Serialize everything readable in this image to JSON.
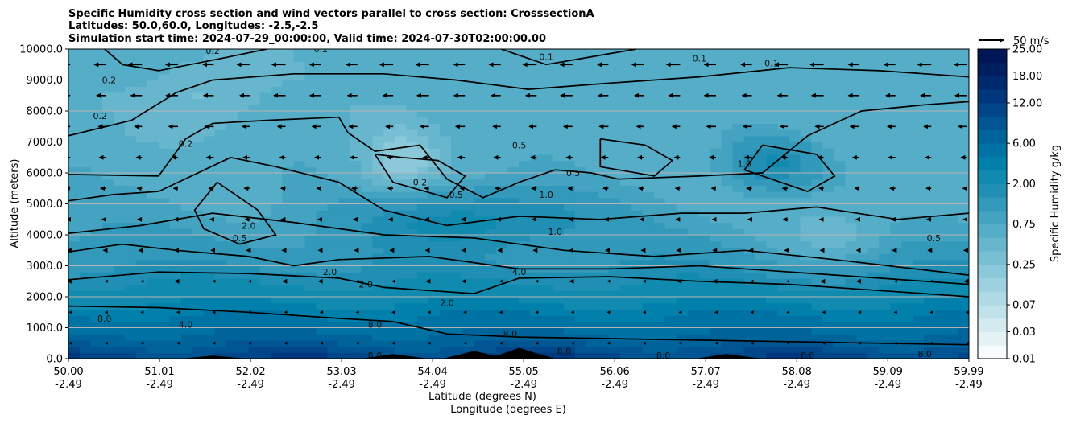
{
  "chart_data": {
    "type": "heatmap",
    "title": [
      "Specific Humidity cross section and wind vectors parallel to cross section: CrosssectionA",
      "Latitudes: 50.0,60.0, Longitudes: -2.5,-2.5",
      "Simulation start time: 2024-07-29_00:00:00, Valid time: 2024-07-30T02:00:00.00"
    ],
    "xlabel": [
      "Latitude (degrees N)",
      "Longitude (degrees E)"
    ],
    "ylabel": "Altitude (meters)",
    "xlim": [
      50.0,
      59.99
    ],
    "ylim": [
      0,
      10000
    ],
    "x_ticks": [
      {
        "lat": "50.00",
        "lon": "-2.49",
        "v": 50.0
      },
      {
        "lat": "51.01",
        "lon": "-2.49",
        "v": 51.01
      },
      {
        "lat": "52.02",
        "lon": "-2.49",
        "v": 52.02
      },
      {
        "lat": "53.03",
        "lon": "-2.49",
        "v": 53.03
      },
      {
        "lat": "54.04",
        "lon": "-2.49",
        "v": 54.04
      },
      {
        "lat": "55.05",
        "lon": "-2.49",
        "v": 55.05
      },
      {
        "lat": "56.06",
        "lon": "-2.49",
        "v": 56.06
      },
      {
        "lat": "57.07",
        "lon": "-2.49",
        "v": 57.07
      },
      {
        "lat": "58.08",
        "lon": "-2.49",
        "v": 58.08
      },
      {
        "lat": "59.09",
        "lon": "-2.49",
        "v": 59.09
      },
      {
        "lat": "59.99",
        "lon": "-2.49",
        "v": 59.99
      }
    ],
    "y_ticks": [
      {
        "label": "0.0",
        "v": 0
      },
      {
        "label": "1000.0",
        "v": 1000
      },
      {
        "label": "2000.0",
        "v": 2000
      },
      {
        "label": "3000.0",
        "v": 3000
      },
      {
        "label": "4000.0",
        "v": 4000
      },
      {
        "label": "5000.0",
        "v": 5000
      },
      {
        "label": "6000.0",
        "v": 6000
      },
      {
        "label": "7000.0",
        "v": 7000
      },
      {
        "label": "8000.0",
        "v": 8000
      },
      {
        "label": "9000.0",
        "v": 9000
      },
      {
        "label": "10000.0",
        "v": 10000
      }
    ],
    "grid": "horizontal",
    "colorbar": {
      "label": "Specific Humidity g/kg",
      "levels": [
        0.01,
        0.02,
        0.03,
        0.05,
        0.07,
        0.1,
        0.15,
        0.25,
        0.35,
        0.5,
        0.75,
        1.0,
        1.5,
        2.0,
        3.0,
        4.0,
        6.0,
        8.0,
        10.0,
        12.0,
        15.0,
        18.0,
        21.0,
        25.0
      ],
      "tick_labels": [
        "0.01",
        "0.03",
        "0.07",
        "0.25",
        "0.75",
        "2.00",
        "6.00",
        "12.00",
        "18.00",
        "25.00"
      ],
      "colors": [
        "#f7fbfd",
        "#e4f2f6",
        "#d2eaf0",
        "#c0e2eb",
        "#aed9e5",
        "#9dd1df",
        "#8bc8d9",
        "#79bfd3",
        "#67b6cd",
        "#55adc7",
        "#44a3c1",
        "#3299bb",
        "#218fb4",
        "#108aaf",
        "#0080ab",
        "#0072a3",
        "#00649b",
        "#005592",
        "#004688",
        "#00377c",
        "#002a6e",
        "#001f60",
        "#001555"
      ]
    },
    "quiver_key": {
      "label": "50 m/s",
      "speed": 50
    },
    "wind_direction": "toward lower latitude (south)",
    "wind_profile": [
      {
        "altitude": 500,
        "u": -1
      },
      {
        "altitude": 1500,
        "u": -3
      },
      {
        "altitude": 2500,
        "u": -5
      },
      {
        "altitude": 3500,
        "u": -6
      },
      {
        "altitude": 4500,
        "u": -8
      },
      {
        "altitude": 5500,
        "u": -10
      },
      {
        "altitude": 6500,
        "u": -13
      },
      {
        "altitude": 7500,
        "u": -17
      },
      {
        "altitude": 8500,
        "u": -22
      },
      {
        "altitude": 9500,
        "u": -25
      }
    ],
    "terrain": [
      {
        "lat": 51.6,
        "height": 100
      },
      {
        "lat": 53.6,
        "height": 150
      },
      {
        "lat": 54.5,
        "height": 250
      },
      {
        "lat": 55.0,
        "height": 350
      },
      {
        "lat": 57.3,
        "height": 150
      }
    ],
    "contour_levels": [
      0.1,
      0.2,
      0.5,
      1.0,
      2.0,
      4.0,
      8.0
    ],
    "contour_labels": [
      {
        "text": "0.2",
        "lat": 50.45,
        "alt": 9000
      },
      {
        "text": "0.2",
        "lat": 50.35,
        "alt": 7850
      },
      {
        "text": "0.2",
        "lat": 51.6,
        "alt": 9950
      },
      {
        "text": "0.2",
        "lat": 52.8,
        "alt": 10000
      },
      {
        "text": "0.2",
        "lat": 51.3,
        "alt": 6950
      },
      {
        "text": "0.2",
        "lat": 53.9,
        "alt": 5700
      },
      {
        "text": "0.1",
        "lat": 55.3,
        "alt": 9750
      },
      {
        "text": "0.1",
        "lat": 57.0,
        "alt": 9700
      },
      {
        "text": "0.1",
        "lat": 57.8,
        "alt": 9550
      },
      {
        "text": "0.5",
        "lat": 54.3,
        "alt": 5300
      },
      {
        "text": "0.5",
        "lat": 55.0,
        "alt": 6900
      },
      {
        "text": "0.5",
        "lat": 55.6,
        "alt": 6000
      },
      {
        "text": "0.5",
        "lat": 59.6,
        "alt": 3900
      },
      {
        "text": "0.5",
        "lat": 51.9,
        "alt": 3900
      },
      {
        "text": "1.0",
        "lat": 55.3,
        "alt": 5300
      },
      {
        "text": "1.0",
        "lat": 55.4,
        "alt": 4100
      },
      {
        "text": "1.0",
        "lat": 57.5,
        "alt": 6300
      },
      {
        "text": "2.0",
        "lat": 52.0,
        "alt": 4300
      },
      {
        "text": "2.0",
        "lat": 52.9,
        "alt": 2800
      },
      {
        "text": "2.0",
        "lat": 53.3,
        "alt": 2400
      },
      {
        "text": "2.0",
        "lat": 54.2,
        "alt": 1800
      },
      {
        "text": "4.0",
        "lat": 55.0,
        "alt": 2800
      },
      {
        "text": "4.0",
        "lat": 51.3,
        "alt": 1100
      },
      {
        "text": "8.0",
        "lat": 50.4,
        "alt": 1300
      },
      {
        "text": "8.0",
        "lat": 53.4,
        "alt": 1100
      },
      {
        "text": "8.0",
        "lat": 54.9,
        "alt": 800
      },
      {
        "text": "8.0",
        "lat": 53.4,
        "alt": 100
      },
      {
        "text": "8.0",
        "lat": 55.5,
        "alt": 250
      },
      {
        "text": "8.0",
        "lat": 56.6,
        "alt": 100
      },
      {
        "text": "8.0",
        "lat": 58.2,
        "alt": 100
      },
      {
        "text": "8.0",
        "lat": 59.5,
        "alt": 150
      }
    ]
  }
}
